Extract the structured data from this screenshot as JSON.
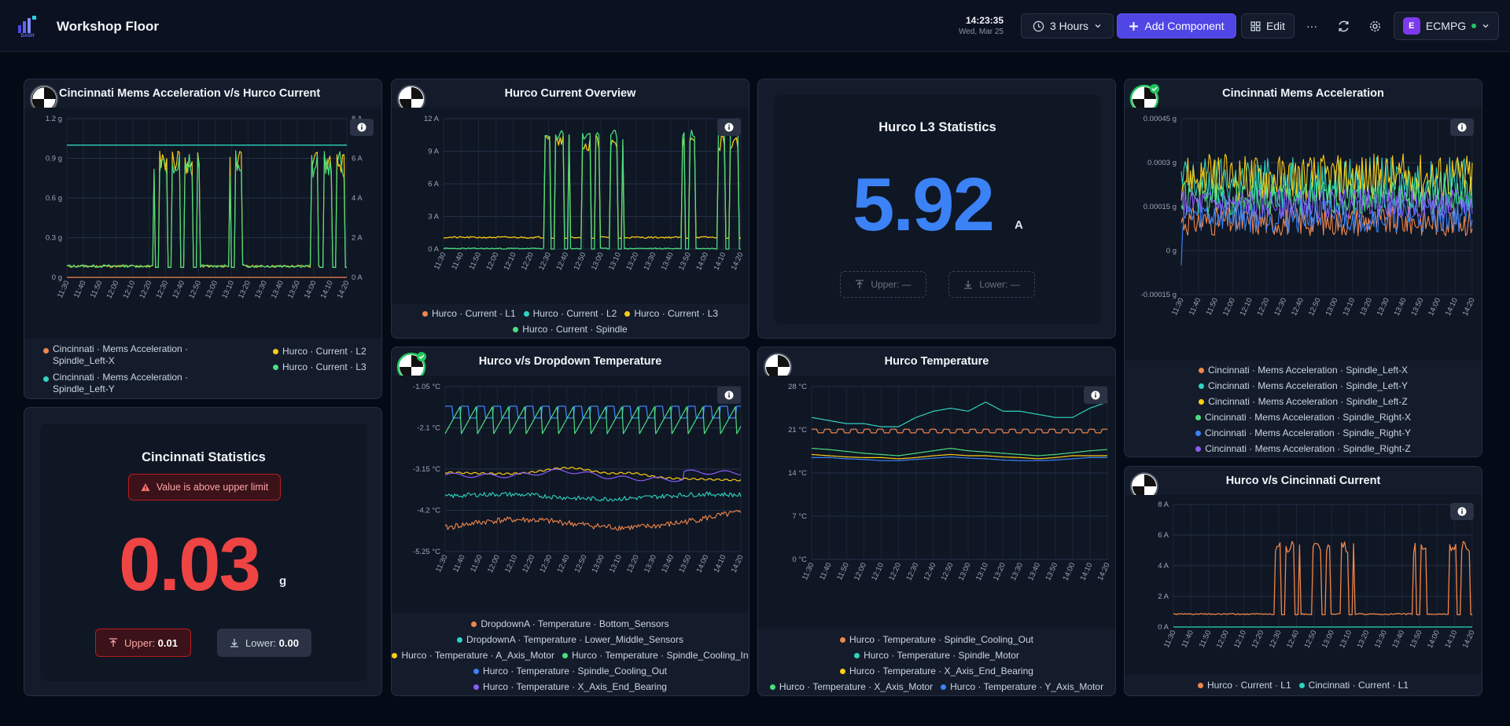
{
  "header": {
    "title": "Workshop Floor",
    "time": "14:23:35",
    "date": "Wed, Mar 25",
    "range_label": "3 Hours",
    "add_label": "Add Component",
    "edit_label": "Edit",
    "more_label": "···",
    "org_initial": "E",
    "org_name": "ECMPG"
  },
  "xticks": [
    "11:30",
    "11:40",
    "11:50",
    "12:00",
    "12:10",
    "12:20",
    "12:30",
    "12:40",
    "12:50",
    "13:00",
    "13:10",
    "13:20",
    "13:30",
    "13:40",
    "13:50",
    "14:00",
    "14:10",
    "14:20"
  ],
  "panels": {
    "p1": {
      "title": "Cincinnati Mems Acceleration v/s Hurco Current",
      "yl": [
        "1.2 g",
        "0.9 g",
        "0.6 g",
        "0.3 g",
        "0 g"
      ],
      "yr": [
        "8 A",
        "6 A",
        "4 A",
        "2 A",
        "0 A"
      ],
      "legend_left": [
        {
          "text": "Cincinnati · Mems Acceleration ·",
          "text2": "Spindle_Left-X",
          "color": "#f0864a"
        },
        {
          "text": "Cincinnati · Mems Acceleration ·",
          "text2": "Spindle_Left-Y",
          "color": "#2dd4bf"
        }
      ],
      "legend_right": [
        {
          "text": "Hurco · Current · L2",
          "color": "#facc15"
        },
        {
          "text": "Hurco · Current · L3",
          "color": "#4ade80"
        }
      ]
    },
    "p2": {
      "title": "Hurco Current Overview",
      "yl": [
        "12 A",
        "9 A",
        "6 A",
        "3 A",
        "0 A"
      ],
      "legend": [
        [
          {
            "text": "Hurco · Current · L1",
            "color": "#f0864a"
          },
          {
            "text": "Hurco · Current · L2",
            "color": "#2dd4bf"
          },
          {
            "text": "Hurco · Current · L3",
            "color": "#facc15"
          }
        ],
        [
          {
            "text": "Hurco · Current · Spindle",
            "color": "#4ade80"
          }
        ]
      ]
    },
    "p3": {
      "title": "Hurco L3 Statistics",
      "value": "5.92",
      "unit": "A",
      "upper": "Upper: —",
      "lower": "Lower: —"
    },
    "p4": {
      "title": "Cincinnati Mems Acceleration",
      "yl": [
        "0.00045 g",
        "0.0003 g",
        "0.00015 g",
        "0 g",
        "-0.00015 g"
      ],
      "legend": [
        [
          {
            "text": "Cincinnati · Mems Acceleration · Spindle_Left-X",
            "color": "#f0864a"
          }
        ],
        [
          {
            "text": "Cincinnati · Mems Acceleration · Spindle_Left-Y",
            "color": "#2dd4bf"
          }
        ],
        [
          {
            "text": "Cincinnati · Mems Acceleration · Spindle_Left-Z",
            "color": "#facc15"
          }
        ],
        [
          {
            "text": "Cincinnati · Mems Acceleration · Spindle_Right-X",
            "color": "#4ade80"
          }
        ],
        [
          {
            "text": "Cincinnati · Mems Acceleration · Spindle_Right-Y",
            "color": "#3b82f6"
          }
        ],
        [
          {
            "text": "Cincinnati · Mems Acceleration · Spindle_Right-Z",
            "color": "#8b5cf6"
          }
        ]
      ]
    },
    "p5": {
      "title": "Cincinnati Statistics",
      "alert": "Value is above upper limit",
      "value": "0.03",
      "unit": "g",
      "upper_label": "Upper:",
      "upper_value": "0.01",
      "lower_label": "Lower:",
      "lower_value": "0.00"
    },
    "p6": {
      "title": "Hurco v/s Dropdown Temperature",
      "yl": [
        "-1.05 °C",
        "-2.1 °C",
        "-3.15 °C",
        "-4.2 °C",
        "-5.25 °C"
      ],
      "legend": [
        [
          {
            "text": "DropdownA · Temperature · Bottom_Sensors",
            "color": "#f0864a"
          }
        ],
        [
          {
            "text": "DropdownA · Temperature · Lower_Middle_Sensors",
            "color": "#2dd4bf"
          }
        ],
        [
          {
            "text": "Hurco · Temperature · A_Axis_Motor",
            "color": "#facc15"
          },
          {
            "text": "Hurco · Temperature · Spindle_Cooling_In",
            "color": "#4ade80"
          }
        ],
        [
          {
            "text": "Hurco · Temperature · Spindle_Cooling_Out",
            "color": "#3b82f6"
          }
        ],
        [
          {
            "text": "Hurco · Temperature · X_Axis_End_Bearing",
            "color": "#8b5cf6"
          }
        ]
      ]
    },
    "p7": {
      "title": "Hurco Temperature",
      "yl": [
        "28 °C",
        "21 °C",
        "14 °C",
        "7 °C",
        "0 °C"
      ],
      "legend": [
        [
          {
            "text": "Hurco · Temperature · Spindle_Cooling_Out",
            "color": "#f0864a"
          }
        ],
        [
          {
            "text": "Hurco · Temperature · Spindle_Motor",
            "color": "#2dd4bf"
          }
        ],
        [
          {
            "text": "Hurco · Temperature · X_Axis_End_Bearing",
            "color": "#facc15"
          }
        ],
        [
          {
            "text": "Hurco · Temperature · X_Axis_Motor",
            "color": "#4ade80"
          },
          {
            "text": "Hurco · Temperature · Y_Axis_Motor",
            "color": "#3b82f6"
          }
        ]
      ]
    },
    "p8": {
      "title": "Hurco v/s Cincinnati Current",
      "yl": [
        "8 A",
        "6 A",
        "4 A",
        "2 A",
        "0 A"
      ],
      "legend": [
        [
          {
            "text": "Hurco · Current · L1",
            "color": "#f0864a"
          },
          {
            "text": "Cincinnati · Current · L1",
            "color": "#2dd4bf"
          }
        ]
      ]
    }
  },
  "chart_data": [
    {
      "type": "line",
      "title": "Cincinnati Mems Acceleration v/s Hurco Current",
      "ylim_left": [
        0,
        1.2
      ],
      "ylim_right": [
        0,
        8
      ],
      "series": [
        {
          "name": "Cincinnati · Mems Acceleration · Spindle_Left-Y",
          "axis": "left",
          "values": [
            1.0
          ]
        },
        {
          "name": "Hurco · Current · L3",
          "axis": "right",
          "values": [
            0.5,
            0.5,
            0.5,
            0.5,
            0.5,
            6,
            1.5,
            6,
            0.5,
            6,
            0.5,
            6,
            0.5,
            0.5,
            0.5,
            0.5,
            6,
            1.5,
            6,
            0.5
          ]
        }
      ]
    },
    {
      "type": "line",
      "title": "Hurco Current Overview",
      "ylim": [
        0,
        12
      ],
      "series": [
        {
          "name": "Hurco · Current · L3",
          "values": [
            1,
            1,
            1,
            1,
            1,
            1,
            10,
            1,
            10,
            1,
            10,
            1,
            1,
            1,
            1,
            1,
            10,
            1,
            10
          ]
        },
        {
          "name": "Hurco · Current · Spindle",
          "values": [
            0,
            0,
            0,
            0,
            0,
            0,
            11,
            0,
            11,
            0,
            11,
            0,
            0,
            0,
            0,
            0,
            11,
            0,
            11
          ]
        }
      ]
    },
    {
      "type": "line",
      "title": "Cincinnati Mems Acceleration",
      "ylim": [
        -0.00015,
        0.00045
      ]
    },
    {
      "type": "line",
      "title": "Hurco v/s Dropdown Temperature",
      "ylim": [
        -5.25,
        -1.05
      ]
    },
    {
      "type": "line",
      "title": "Hurco Temperature",
      "ylim": [
        0,
        28
      ],
      "series": [
        {
          "name": "Hurco · Temperature · Spindle_Cooling_Out",
          "values": [
            20.5,
            20.5,
            20.5,
            20.5,
            20.5,
            20.5,
            20.5,
            20.5,
            20.5,
            20.5,
            20.5,
            20.5,
            20.5,
            20.5,
            20.5,
            20.5,
            20.5,
            20.5
          ]
        },
        {
          "name": "Hurco · Temperature · Spindle_Motor",
          "values": [
            23,
            22.5,
            22,
            22,
            21.5,
            21.5,
            23,
            24,
            24.5,
            24,
            25.5,
            24,
            24,
            23.5,
            23,
            23,
            24.5,
            25.5
          ]
        },
        {
          "name": "Hurco · Temperature · X_Axis_End_Bearing",
          "values": [
            17,
            16.8,
            16.6,
            16.5,
            16.5,
            16.3,
            16.5,
            16.8,
            17,
            16.8,
            16.8,
            16.6,
            16.5,
            16.3,
            16.5,
            16.8,
            16.8,
            16.8
          ]
        },
        {
          "name": "Hurco · Temperature · X_Axis_Motor",
          "values": [
            18,
            17.8,
            17.5,
            17.2,
            17,
            16.8,
            17.2,
            17.6,
            18,
            17.6,
            17.4,
            17.2,
            17,
            16.8,
            17,
            17.3,
            17.6,
            17.8
          ]
        },
        {
          "name": "Hurco · Temperature · Y_Axis_Motor",
          "values": [
            16.5,
            16.5,
            16.3,
            16.2,
            16,
            16,
            16.2,
            16.4,
            16.6,
            16.4,
            16.3,
            16.1,
            16,
            16,
            16.1,
            16.3,
            16.5,
            16.5
          ]
        }
      ]
    },
    {
      "type": "line",
      "title": "Hurco v/s Cincinnati Current",
      "ylim": [
        0,
        8
      ],
      "series": [
        {
          "name": "Hurco · Current · L1",
          "values": [
            0.8,
            0.8,
            0.8,
            0.8,
            0.8,
            0.8,
            5.5,
            0.8,
            5.5,
            0.8,
            5.5,
            0.8,
            0.8,
            0.8,
            0.8,
            0.8,
            5.5,
            0.8,
            5.5
          ]
        },
        {
          "name": "Cincinnati · Current · L1",
          "values": [
            0,
            0,
            0,
            0,
            0,
            0,
            0,
            0,
            0,
            0,
            0,
            0,
            0,
            0,
            0,
            0,
            0,
            0,
            0
          ]
        }
      ]
    }
  ],
  "colors": {
    "accent": "#4f46e5",
    "danger": "#ef4444",
    "stat_blue": "#3b82f6",
    "bg": "#050a17",
    "panel": "#141c2c"
  }
}
